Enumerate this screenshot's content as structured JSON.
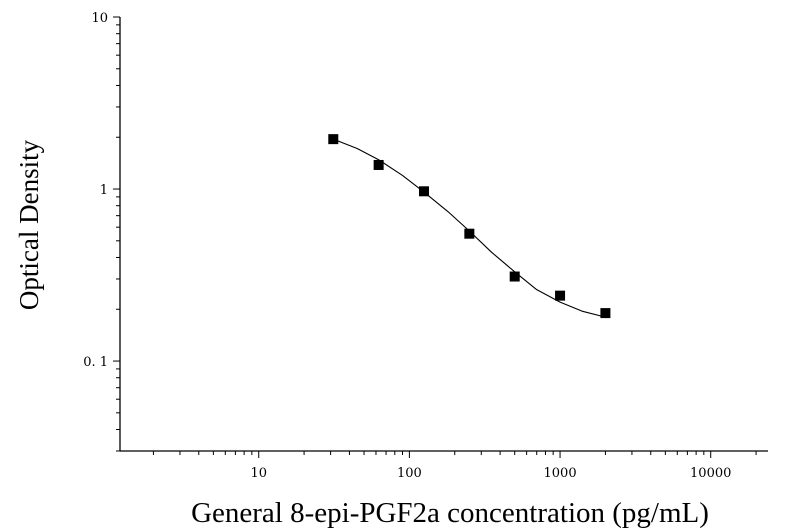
{
  "chart_data": {
    "type": "scatter",
    "xlabel": "General 8-epi-PGF2a concentration (pg/mL)",
    "ylabel": "Optical Density",
    "xscale": "log",
    "yscale": "log",
    "xlim": [
      1.2,
      24000
    ],
    "ylim": [
      0.03,
      10
    ],
    "x_ticks": [
      {
        "value": 10,
        "label": "10"
      },
      {
        "value": 100,
        "label": "100"
      },
      {
        "value": 1000,
        "label": "1000"
      },
      {
        "value": 10000,
        "label": "10000"
      }
    ],
    "y_ticks": [
      {
        "value": 10,
        "label": "10"
      },
      {
        "value": 1,
        "label": "1"
      },
      {
        "value": 0.1,
        "label": "0. 1"
      }
    ],
    "grid": false,
    "legend": "none",
    "marker": "square",
    "series": [
      {
        "x": [
          31.25,
          62.5,
          125,
          250,
          500,
          1000,
          2000
        ],
        "y": [
          1.95,
          1.38,
          0.97,
          0.55,
          0.31,
          0.24,
          0.19
        ]
      }
    ],
    "fit_curve": {
      "x": [
        31.25,
        45,
        62.5,
        90,
        125,
        180,
        250,
        350,
        500,
        700,
        1000,
        1400,
        2000
      ],
      "y": [
        1.95,
        1.72,
        1.48,
        1.2,
        0.96,
        0.74,
        0.57,
        0.43,
        0.33,
        0.26,
        0.22,
        0.195,
        0.18
      ]
    },
    "colors": {
      "marker": "#000000",
      "line": "#000000",
      "axis": "#000000"
    }
  }
}
